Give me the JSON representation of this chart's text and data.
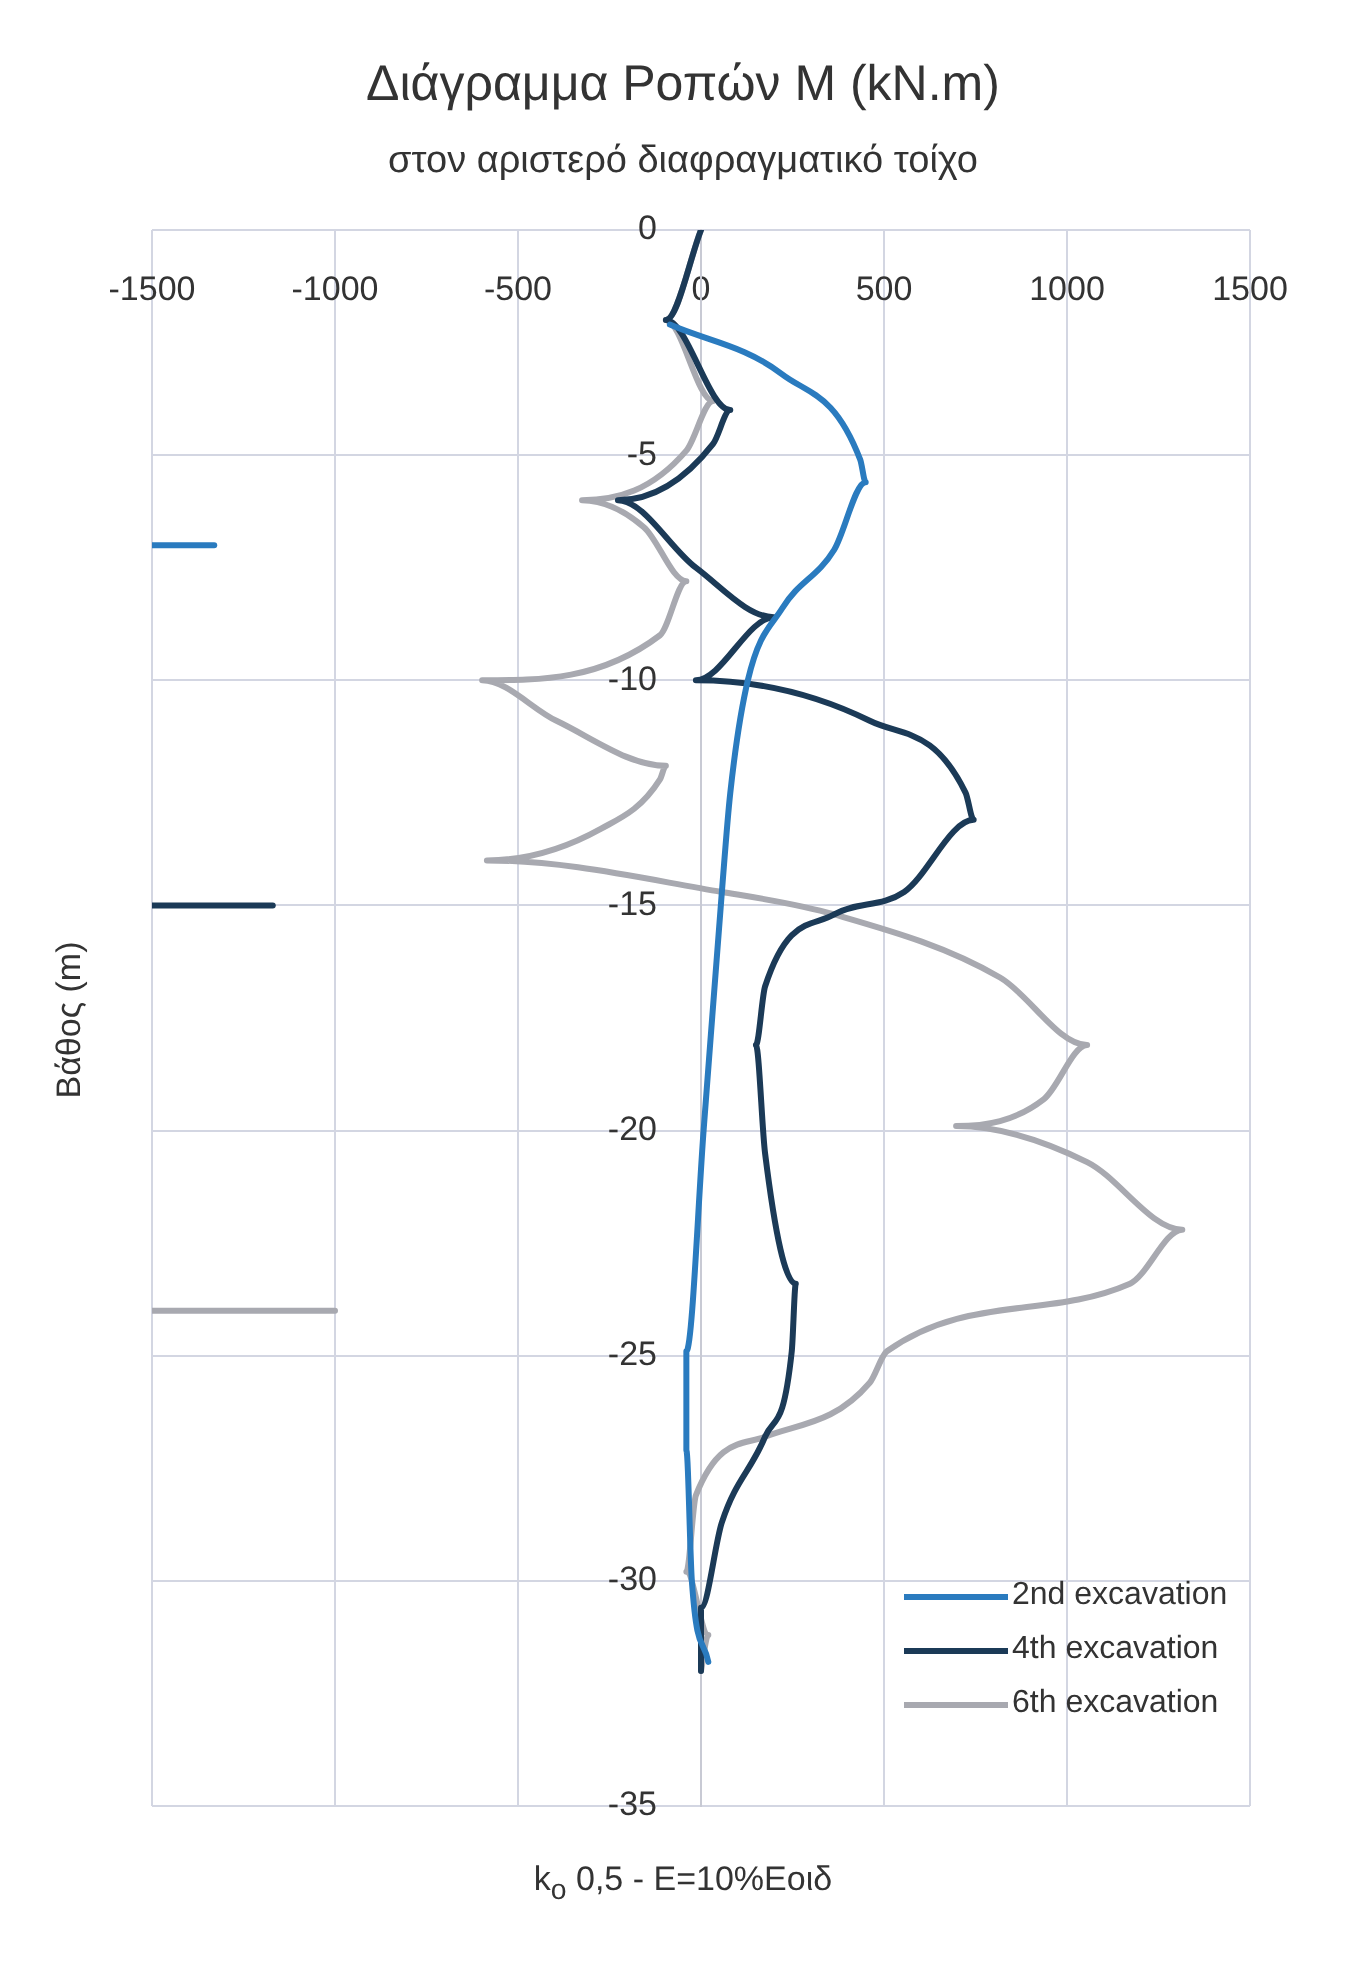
{
  "chart_data": {
    "type": "line",
    "title": "Διάγραμμα Ροπών Μ (kN.m)",
    "subtitle": "στον αριστερό διαφραγματικό τοίχο",
    "xlabel": "k$_{o}$ 0,5 - E=10%Εοιδ",
    "ylabel": "Βάθος (m)",
    "xlim": [
      -1500,
      1500
    ],
    "xticks": [
      -1500,
      -1000,
      -500,
      0,
      500,
      1000,
      1500
    ],
    "ylim": [
      -35,
      0
    ],
    "yticks": [
      -35,
      -30,
      -25,
      -20,
      -15,
      -10,
      -5,
      0
    ],
    "grid": true,
    "legend": "bottom right",
    "marker": "none",
    "line_style": "solid",
    "series": [
      {
        "name": "2nd excavation",
        "color": "#2a7bbf",
        "x": [
          -85,
          221,
          435,
          450,
          364,
          222,
          128,
          80,
          57,
          8,
          -40,
          -40,
          -25,
          20
        ],
        "values": [
          -2.1,
          -3.2,
          -5.1,
          -5.6,
          -7.1,
          -8.4,
          -10,
          -12.5,
          -14.7,
          -19.9,
          -24.9,
          -27.1,
          -30,
          -31.8
        ]
      },
      {
        "name": "4th excavation",
        "color": "#1b3a57",
        "x": [
          0,
          -96,
          80,
          33,
          -227,
          -14,
          199,
          -14,
          461,
          723,
          745,
          555,
          364,
          175,
          150,
          175,
          259,
          248,
          175,
          57,
          0,
          0
        ],
        "values": [
          0,
          -2,
          -4,
          -4.75,
          -6,
          -7.5,
          -8.6,
          -10,
          -10.9,
          -12.5,
          -13.1,
          -14.7,
          -15.2,
          -16.8,
          -18.1,
          -20.5,
          -23.4,
          -24.9,
          -26.8,
          -28.7,
          -30.6,
          -32
        ]
      },
      {
        "name": "6th excavation",
        "color": "#a8a9b0",
        "x": [
          0,
          -96,
          33,
          -40,
          -325,
          -156,
          -40,
          -112,
          -598,
          -395,
          -96,
          -112,
          -274,
          -585,
          57,
          364,
          817,
          1055,
          937,
          697,
          1055,
          1315,
          1172,
          508,
          461,
          175,
          -14,
          -40,
          20,
          0
        ],
        "values": [
          0,
          -2,
          -3.8,
          -4.9,
          -6,
          -6.6,
          -7.8,
          -9,
          -10,
          -10.9,
          -11.9,
          -12.2,
          -13.3,
          -14,
          -14.7,
          -15.2,
          -16.6,
          -18.1,
          -19.3,
          -19.9,
          -20.7,
          -22.2,
          -23.4,
          -24.9,
          -25.6,
          -26.8,
          -28.1,
          -29.8,
          -31.2,
          -32
        ]
      },
      {
        "color": "#2a7bbf",
        "x": [
          -1500,
          -1330
        ],
        "values": [
          -7,
          -7
        ]
      },
      {
        "color": "#1b3a57",
        "x": [
          -1500,
          -1170
        ],
        "values": [
          -15,
          -15
        ]
      },
      {
        "color": "#a8a9b0",
        "x": [
          -1500,
          -1000
        ],
        "values": [
          -24,
          -24
        ]
      }
    ]
  }
}
